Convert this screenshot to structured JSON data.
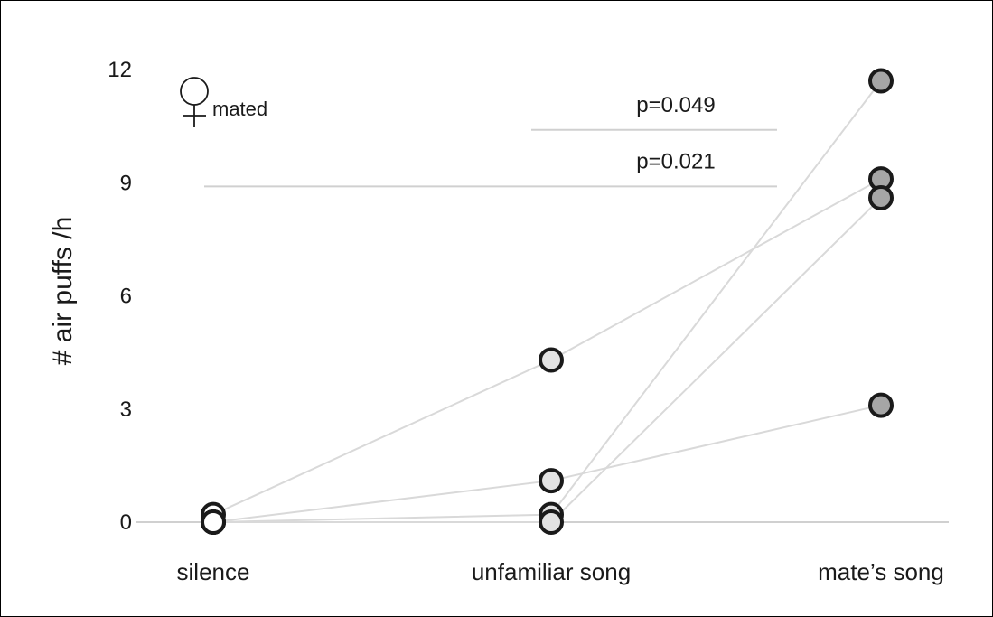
{
  "chart_data": {
    "type": "scatter",
    "ylabel": "# air puffs /h",
    "ylim": [
      0,
      12
    ],
    "yticks": [
      "0",
      "3",
      "6",
      "9",
      "12"
    ],
    "categories": [
      "silence",
      "unfamiliar song",
      "mate’s song"
    ],
    "annotation": "mated",
    "significance": [
      {
        "label": "p=0.049",
        "from": "unfamiliar song",
        "to": "mate’s song",
        "y": 10.4
      },
      {
        "label": "p=0.021",
        "from": "silence",
        "to": "mate’s song",
        "y": 8.9
      }
    ],
    "paired_series": [
      {
        "values": [
          0.2,
          4.3,
          9.1
        ]
      },
      {
        "values": [
          0.0,
          0.2,
          11.7
        ]
      },
      {
        "values": [
          0.0,
          0.0,
          8.6
        ]
      },
      {
        "values": [
          0.0,
          1.1,
          3.1
        ]
      }
    ],
    "colors": {
      "silence": "#ffffff",
      "unfamiliar": "#e3e3e3",
      "mate": "#a6a6a6",
      "marker_edge": "#1a1a1a",
      "line": "#d9d9d9",
      "axis": "#d0d0d0"
    }
  }
}
